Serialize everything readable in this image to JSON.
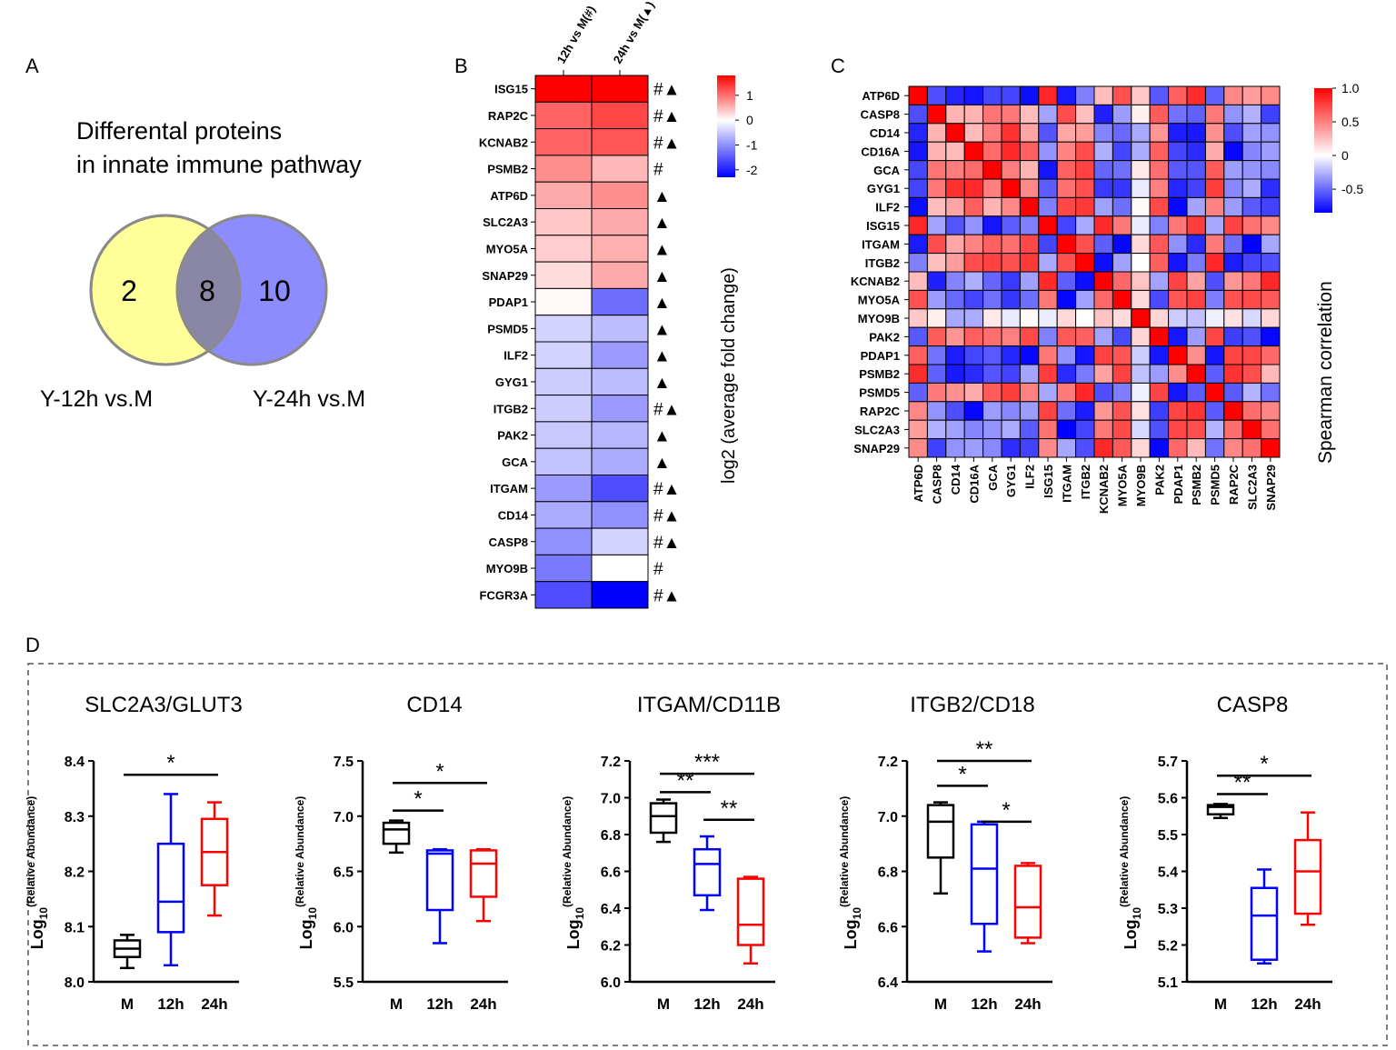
{
  "panel_labels": {
    "a": "A",
    "b": "B",
    "c": "C",
    "d": "D"
  },
  "venn": {
    "title_line1": "Differental proteins",
    "title_line2": "in innate immune pathway",
    "left_count": "2",
    "overlap_count": "8",
    "right_count": "10",
    "left_label": "Y-12h vs.M",
    "right_label": "Y-24h vs.M",
    "colors": {
      "left": "#ffff99",
      "right": "#8c8cff",
      "overlap": "#8a87a6"
    }
  },
  "chart_data": [
    {
      "id": "B",
      "type": "heatmap",
      "columns": [
        "12h vs M(#)",
        "24h vs M(▲)"
      ],
      "rows": [
        {
          "gene": "ISG15",
          "v12": 1.8,
          "v24": 2.0,
          "marks": "#▲"
        },
        {
          "gene": "RAP2C",
          "v12": 1.1,
          "v24": 1.3,
          "marks": "#▲"
        },
        {
          "gene": "KCNAB2",
          "v12": 1.1,
          "v24": 1.2,
          "marks": "#▲"
        },
        {
          "gene": "PSMB2",
          "v12": 0.8,
          "v24": 0.5,
          "marks": "#"
        },
        {
          "gene": "ATP6D",
          "v12": 0.6,
          "v24": 0.8,
          "marks": "▲"
        },
        {
          "gene": "SLC2A3",
          "v12": 0.4,
          "v24": 0.6,
          "marks": "▲"
        },
        {
          "gene": "MYO5A",
          "v12": 0.35,
          "v24": 0.55,
          "marks": "▲"
        },
        {
          "gene": "SNAP29",
          "v12": 0.25,
          "v24": 0.6,
          "marks": "▲"
        },
        {
          "gene": "PDAP1",
          "v12": 0.05,
          "v24": -1.3,
          "marks": "▲"
        },
        {
          "gene": "PSMD5",
          "v12": -0.4,
          "v24": -0.6,
          "marks": "▲"
        },
        {
          "gene": "ILF2",
          "v12": -0.4,
          "v24": -0.9,
          "marks": "▲"
        },
        {
          "gene": "GYG1",
          "v12": -0.45,
          "v24": -0.6,
          "marks": "▲"
        },
        {
          "gene": "ITGB2",
          "v12": -0.45,
          "v24": -0.9,
          "marks": "#▲"
        },
        {
          "gene": "PAK2",
          "v12": -0.5,
          "v24": -0.65,
          "marks": "▲"
        },
        {
          "gene": "GCA",
          "v12": -0.55,
          "v24": -0.75,
          "marks": "▲"
        },
        {
          "gene": "ITGAM",
          "v12": -0.9,
          "v24": -1.6,
          "marks": "#▲"
        },
        {
          "gene": "CD14",
          "v12": -0.75,
          "v24": -1.0,
          "marks": "#▲"
        },
        {
          "gene": "CASP8",
          "v12": -1.0,
          "v24": -0.4,
          "marks": "#▲"
        },
        {
          "gene": "MYO9B",
          "v12": -1.2,
          "v24": 0.0,
          "marks": "#"
        },
        {
          "gene": "FCGR3A",
          "v12": -1.6,
          "v24": -2.3,
          "marks": "#▲"
        }
      ],
      "legend_ticks": [
        "1",
        "0",
        "-1",
        "-2"
      ],
      "legend_range": [
        -2.3,
        1.8
      ],
      "colorbar_label": "log2 (average fold change)",
      "colors": {
        "high": "#ff0000",
        "mid": "#ffffff",
        "low": "#0000ff"
      }
    },
    {
      "id": "C",
      "type": "heatmap",
      "labels": [
        "ATP6D",
        "CASP8",
        "CD14",
        "CD16A",
        "GCA",
        "GYG1",
        "ILF2",
        "ISG15",
        "ITGAM",
        "ITGB2",
        "KCNAB2",
        "MYO5A",
        "MYO9B",
        "PAK2",
        "PDAP1",
        "PSMB2",
        "PSMD5",
        "RAP2C",
        "SLC2A3",
        "SNAP29"
      ],
      "group_a": [
        "CASP8",
        "CD14",
        "CD16A",
        "GCA",
        "GYG1",
        "ILF2",
        "ITGAM",
        "ITGB2",
        "PAK2",
        "PSMD5"
      ],
      "group_b": [
        "ATP6D",
        "ISG15",
        "KCNAB2",
        "MYO5A",
        "PDAP1",
        "PSMB2",
        "RAP2C",
        "SLC2A3",
        "SNAP29"
      ],
      "same_group_corr": 0.55,
      "cross_group_corr": -0.55,
      "diagonal": 1.0,
      "legend_ticks": [
        "1.0",
        "0.5",
        "0",
        "-0.5"
      ],
      "legend_range": [
        -0.85,
        1.0
      ],
      "colorbar_label": "Spearman correlation"
    },
    {
      "id": "D1",
      "type": "box",
      "title": "SLC2A3/GLUT3",
      "ylim": [
        8.0,
        8.4
      ],
      "yticks": [
        "8.0",
        "8.1",
        "8.2",
        "8.3",
        "8.4"
      ],
      "ylabel": "Log10(Relative Abundance)",
      "groups": [
        {
          "name": "M",
          "color": "#000000",
          "min": 8.025,
          "q1": 8.045,
          "median": 8.06,
          "q3": 8.075,
          "max": 8.085
        },
        {
          "name": "12h",
          "color": "#0000ff",
          "min": 8.03,
          "q1": 8.09,
          "median": 8.145,
          "q3": 8.25,
          "max": 8.34
        },
        {
          "name": "24h",
          "color": "#ff0000",
          "min": 8.12,
          "q1": 8.175,
          "median": 8.235,
          "q3": 8.295,
          "max": 8.325
        }
      ],
      "sig": [
        {
          "from": 0,
          "to": 2,
          "label": "*",
          "y": 8.375
        }
      ]
    },
    {
      "id": "D2",
      "type": "box",
      "title": "CD14",
      "ylim": [
        5.5,
        7.5
      ],
      "yticks": [
        "5.5",
        "6.0",
        "6.5",
        "7.0",
        "7.5"
      ],
      "ylabel": "Log10(Relative Abundance)",
      "groups": [
        {
          "name": "M",
          "color": "#000000",
          "min": 6.67,
          "q1": 6.75,
          "median": 6.88,
          "q3": 6.94,
          "max": 6.96
        },
        {
          "name": "12h",
          "color": "#0000ff",
          "min": 5.85,
          "q1": 6.15,
          "median": 6.66,
          "q3": 6.69,
          "max": 6.7
        },
        {
          "name": "24h",
          "color": "#ff0000",
          "min": 6.05,
          "q1": 6.27,
          "median": 6.57,
          "q3": 6.69,
          "max": 6.7
        }
      ],
      "sig": [
        {
          "from": 0,
          "to": 2,
          "label": "*",
          "y": 7.3
        },
        {
          "from": 0,
          "to": 1,
          "label": "*",
          "y": 7.05
        }
      ]
    },
    {
      "id": "D3",
      "type": "box",
      "title": "ITGAM/CD11B",
      "ylim": [
        6.0,
        7.2
      ],
      "yticks": [
        "6.0",
        "6.2",
        "6.4",
        "6.6",
        "6.8",
        "7.0",
        "7.2"
      ],
      "ylabel": "Log10(Relative Abundance)",
      "groups": [
        {
          "name": "M",
          "color": "#000000",
          "min": 6.76,
          "q1": 6.81,
          "median": 6.9,
          "q3": 6.97,
          "max": 6.99
        },
        {
          "name": "12h",
          "color": "#0000ff",
          "min": 6.39,
          "q1": 6.47,
          "median": 6.64,
          "q3": 6.72,
          "max": 6.79
        },
        {
          "name": "24h",
          "color": "#ff0000",
          "min": 6.1,
          "q1": 6.2,
          "median": 6.31,
          "q3": 6.56,
          "max": 6.57
        }
      ],
      "sig": [
        {
          "from": 0,
          "to": 2,
          "label": "***",
          "y": 7.13
        },
        {
          "from": 0,
          "to": 1,
          "label": "**",
          "y": 7.03
        },
        {
          "from": 1,
          "to": 2,
          "label": "**",
          "y": 6.88
        }
      ]
    },
    {
      "id": "D4",
      "type": "box",
      "title": "ITGB2/CD18",
      "ylim": [
        6.4,
        7.2
      ],
      "yticks": [
        "6.4",
        "6.6",
        "6.8",
        "7.0",
        "7.2"
      ],
      "ylabel": "Log10(Relative Abundance)",
      "groups": [
        {
          "name": "M",
          "color": "#000000",
          "min": 6.72,
          "q1": 6.85,
          "median": 6.98,
          "q3": 7.04,
          "max": 7.05
        },
        {
          "name": "12h",
          "color": "#0000ff",
          "min": 6.51,
          "q1": 6.61,
          "median": 6.81,
          "q3": 6.97,
          "max": 6.98
        },
        {
          "name": "24h",
          "color": "#ff0000",
          "min": 6.54,
          "q1": 6.56,
          "median": 6.67,
          "q3": 6.82,
          "max": 6.83
        }
      ],
      "sig": [
        {
          "from": 0,
          "to": 2,
          "label": "**",
          "y": 7.2
        },
        {
          "from": 0,
          "to": 1,
          "label": "*",
          "y": 7.11
        },
        {
          "from": 1,
          "to": 2,
          "label": "*",
          "y": 6.98
        }
      ]
    },
    {
      "id": "D5",
      "type": "box",
      "title": "CASP8",
      "ylim": [
        5.1,
        5.7
      ],
      "yticks": [
        "5.1",
        "5.2",
        "5.3",
        "5.4",
        "5.5",
        "5.6",
        "5.7"
      ],
      "ylabel": "Log10(Relative Abundance)",
      "groups": [
        {
          "name": "M",
          "color": "#000000",
          "min": 5.545,
          "q1": 5.555,
          "median": 5.575,
          "q3": 5.58,
          "max": 5.583
        },
        {
          "name": "12h",
          "color": "#0000ff",
          "min": 5.15,
          "q1": 5.16,
          "median": 5.28,
          "q3": 5.355,
          "max": 5.405
        },
        {
          "name": "24h",
          "color": "#ff0000",
          "min": 5.255,
          "q1": 5.285,
          "median": 5.4,
          "q3": 5.485,
          "max": 5.56
        }
      ],
      "sig": [
        {
          "from": 0,
          "to": 2,
          "label": "*",
          "y": 5.66
        },
        {
          "from": 0,
          "to": 1,
          "label": "**",
          "y": 5.61
        }
      ]
    }
  ]
}
